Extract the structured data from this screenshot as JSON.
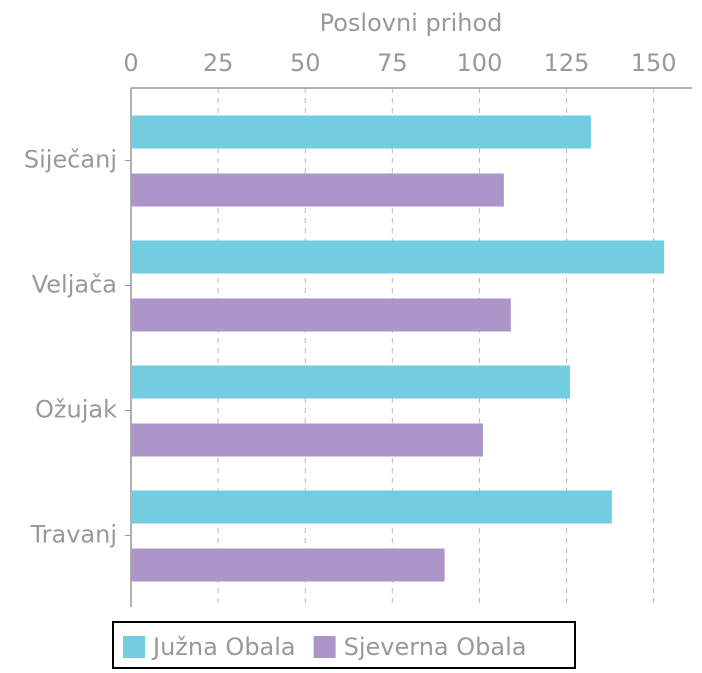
{
  "chart_data": {
    "type": "hbar",
    "xlabel": "Poslovni prihod",
    "categories": [
      "Siječanj",
      "Veljača",
      "Ožujak",
      "Travanj"
    ],
    "series": [
      {
        "name": "Južna Obala",
        "color": "#72cde0",
        "values": [
          132,
          153,
          126,
          138
        ]
      },
      {
        "name": "Sjeverna Obala",
        "color": "#ab95c9",
        "values": [
          107,
          109,
          101,
          90
        ]
      }
    ],
    "xlim": [
      0,
      161
    ],
    "xticks": [
      0,
      25,
      50,
      75,
      100,
      125,
      150
    ],
    "grid": true,
    "legend": "bottom"
  }
}
